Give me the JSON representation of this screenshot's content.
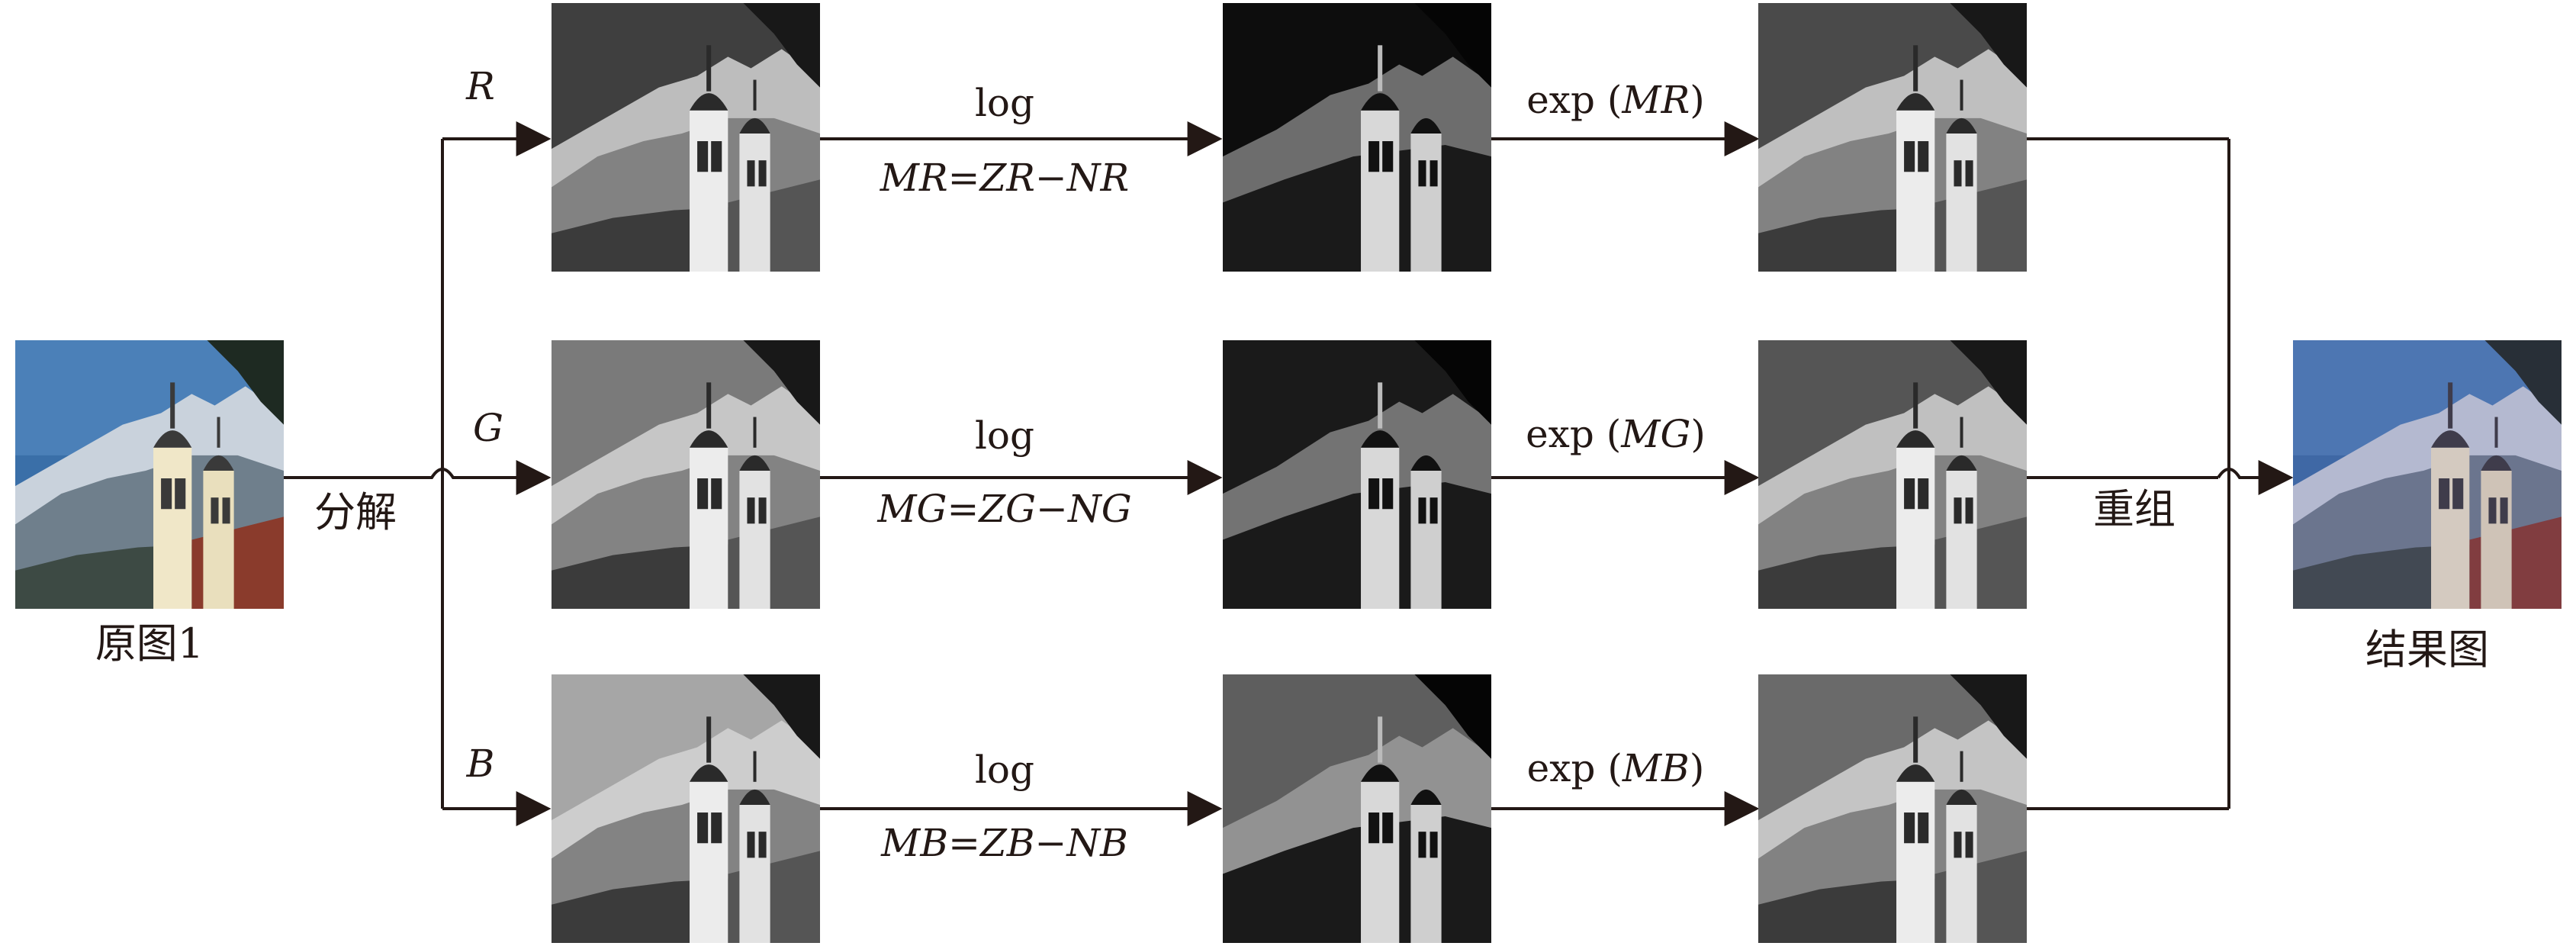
{
  "source": {
    "label": "原图1"
  },
  "split_label": "分解",
  "merge_label": "重组",
  "result": {
    "label": "结果图"
  },
  "channels": [
    {
      "name": "R",
      "log_label": "log",
      "formula": "MR=ZR−NR",
      "exp_label": "exp (MR)",
      "exp_func": "exp (",
      "exp_arg": "MR",
      "exp_close": ")"
    },
    {
      "name": "G",
      "log_label": "log",
      "formula": "MG=ZG−NG",
      "exp_label": "exp (MG)",
      "exp_func": "exp (",
      "exp_arg": "MG",
      "exp_close": ")"
    },
    {
      "name": "B",
      "log_label": "log",
      "formula": "MB=ZB−NB",
      "exp_label": "exp (MB)",
      "exp_func": "exp (",
      "exp_arg": "MB",
      "exp_close": ")"
    }
  ],
  "colors": {
    "line": "#231815",
    "sky": "#3a6fa8",
    "roof": "#8a3b2c"
  }
}
